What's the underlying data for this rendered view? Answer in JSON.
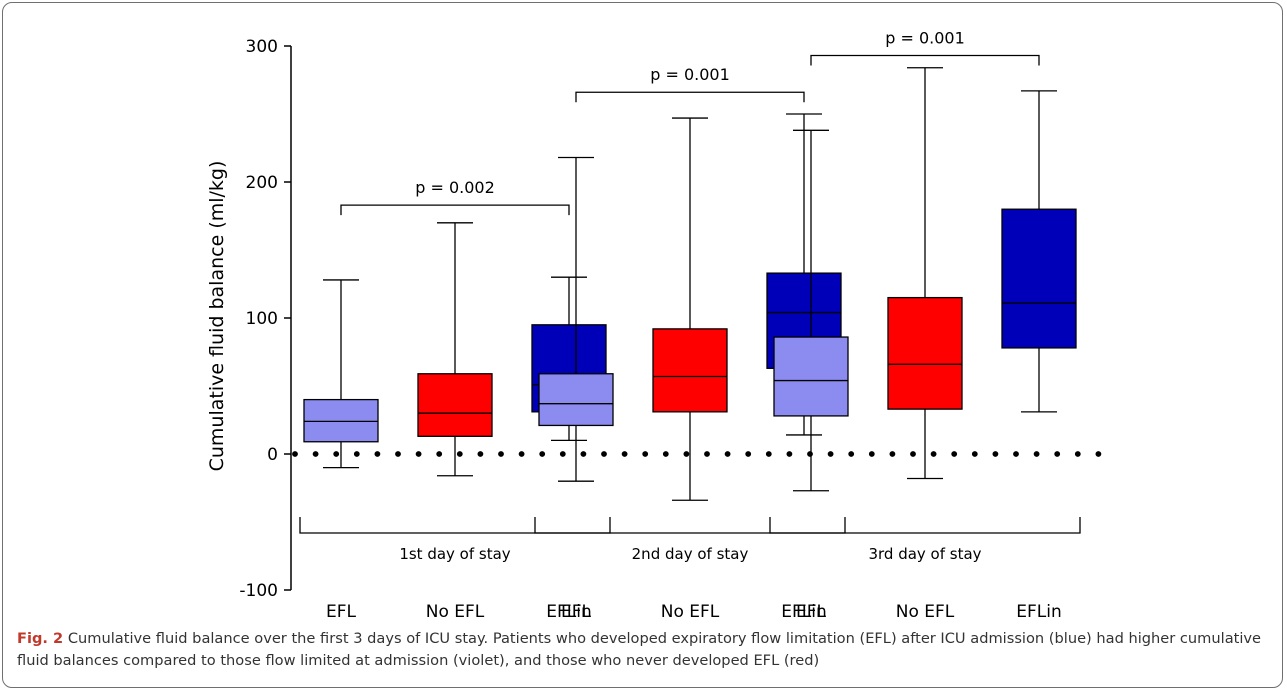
{
  "caption": {
    "label": "Fig. 2",
    "text": " Cumulative fluid balance over the first 3 days of ICU stay. Patients who developed expiratory flow limitation (EFL) after ICU admission (blue) had higher cumulative fluid balances compared to those flow limited at admission (violet), and those who never developed EFL (red)"
  },
  "chart_data": {
    "type": "box",
    "ylabel": "Cumulative fluid balance (ml/kg)",
    "ylim": [
      -100,
      300
    ],
    "yticks": [
      -100,
      0,
      100,
      200,
      300
    ],
    "ytick_labels": [
      "-100",
      "0",
      "100",
      "200",
      "300"
    ],
    "reference_line": {
      "y": 0,
      "style": "dotted"
    },
    "colors": {
      "EFL": "#8c8cf0",
      "No EFL": "#ff0000",
      "EFLin": "#0000b8"
    },
    "groups": [
      {
        "label": "1st day of stay",
        "boxes": [
          {
            "category": "EFL",
            "min": -10,
            "q1": 9,
            "median": 24,
            "q3": 40,
            "max": 128
          },
          {
            "category": "No EFL",
            "min": -16,
            "q1": 13,
            "median": 30,
            "q3": 59,
            "max": 170
          },
          {
            "category": "EFLin",
            "min": 10,
            "q1": 31,
            "median": 51,
            "q3": 95,
            "max": 130
          }
        ],
        "comparison": {
          "from": "EFL",
          "to": "EFLin",
          "label": "p = 0.002",
          "y": 183
        }
      },
      {
        "label": "2nd day of stay",
        "boxes": [
          {
            "category": "EFL",
            "min": -20,
            "q1": 21,
            "median": 37,
            "q3": 59,
            "max": 218
          },
          {
            "category": "No EFL",
            "min": -34,
            "q1": 31,
            "median": 57,
            "q3": 92,
            "max": 247
          },
          {
            "category": "EFLin",
            "min": 14,
            "q1": 63,
            "median": 104,
            "q3": 133,
            "max": 250
          }
        ],
        "comparison": {
          "from": "EFL",
          "to": "EFLin",
          "label": "p = 0.001",
          "y": 266
        }
      },
      {
        "label": "3rd day of stay",
        "boxes": [
          {
            "category": "EFL",
            "min": -27,
            "q1": 28,
            "median": 54,
            "q3": 86,
            "max": 238
          },
          {
            "category": "No EFL",
            "min": -18,
            "q1": 33,
            "median": 66,
            "q3": 115,
            "max": 284
          },
          {
            "category": "EFLin",
            "min": 31,
            "q1": 78,
            "median": 111,
            "q3": 180,
            "max": 267
          }
        ],
        "comparison": {
          "from": "EFL",
          "to": "EFLin",
          "label": "p = 0.001",
          "y": 293
        }
      }
    ]
  }
}
